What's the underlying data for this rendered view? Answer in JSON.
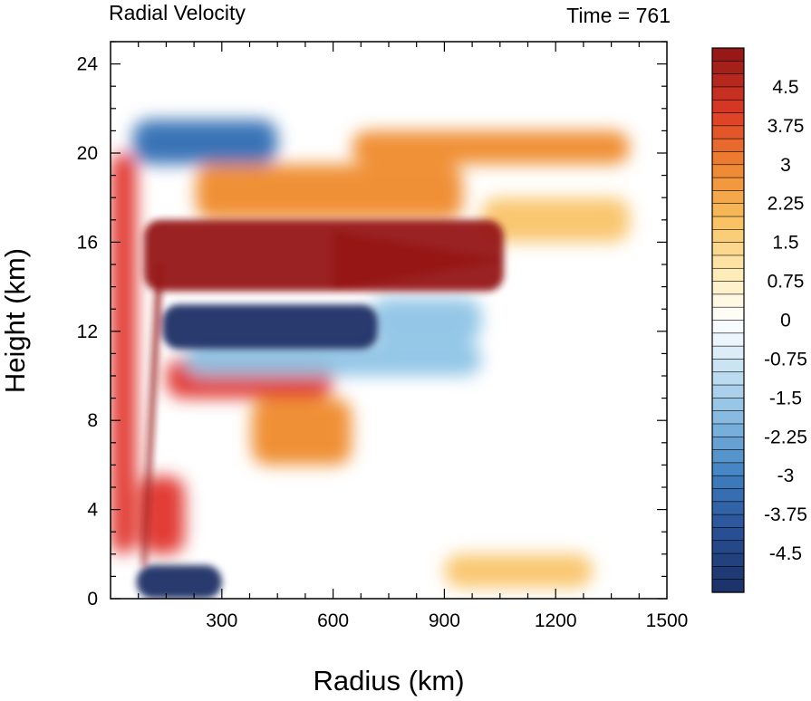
{
  "chart_data": {
    "type": "heatmap",
    "title": "Radial Velocity",
    "title_right": "Time = 761",
    "xlabel": "Radius (km)",
    "ylabel": "Height (km)",
    "xlim": [
      0,
      1500
    ],
    "ylim": [
      0,
      25
    ],
    "xticks": [
      300,
      600,
      900,
      1200,
      1500
    ],
    "yticks": [
      0,
      4,
      8,
      12,
      16,
      20,
      24
    ],
    "colorbar": {
      "range": [
        -5.25,
        5.25
      ],
      "step": 0.25,
      "tick_labels": [
        "4.5",
        "3.75",
        "3",
        "2.25",
        "1.5",
        "0.75",
        "0",
        "-0.75",
        "-1.5",
        "-2.25",
        "-3",
        "-3.75",
        "-4.5"
      ],
      "colors": {
        "neg_strong": "#1a2f66",
        "neg_mid": "#2f6db3",
        "neg_light": "#8ec4e6",
        "neg_pale": "#e6f3fb",
        "neutral": "#ffffff",
        "pos_pale": "#fff3d0",
        "pos_light": "#f9c46a",
        "pos_mid": "#ef8a2c",
        "pos_strong": "#e0312a",
        "pos_max": "#961616"
      }
    },
    "features": [
      {
        "r": [
          90,
          1060
        ],
        "z": [
          13.8,
          17.0
        ],
        "value": 5.5
      },
      {
        "r": [
          140,
          720
        ],
        "z": [
          11.2,
          13.2
        ],
        "value": -5.0
      },
      {
        "r": [
          700,
          1000
        ],
        "z": [
          11.5,
          13.5
        ],
        "value": -2.0
      },
      {
        "r": [
          230,
          950
        ],
        "z": [
          17.0,
          19.5
        ],
        "value": 3.0
      },
      {
        "r": [
          650,
          1400
        ],
        "z": [
          19.5,
          21.0
        ],
        "value": 3.0
      },
      {
        "r": [
          60,
          450
        ],
        "z": [
          19.5,
          21.5
        ],
        "value": -3.0
      },
      {
        "r": [
          150,
          600
        ],
        "z": [
          9.0,
          10.8
        ],
        "value": 3.5
      },
      {
        "r": [
          380,
          650
        ],
        "z": [
          6.0,
          9.0
        ],
        "value": 2.5
      },
      {
        "r": [
          200,
          1000
        ],
        "z": [
          10.0,
          11.5
        ],
        "value": -1.2
      },
      {
        "r": [
          1000,
          1400
        ],
        "z": [
          16.0,
          18.0
        ],
        "value": 1.5
      },
      {
        "r": [
          70,
          300
        ],
        "z": [
          0,
          1.5
        ],
        "value": -5.0
      },
      {
        "r": [
          80,
          200
        ],
        "z": [
          2.0,
          5.5
        ],
        "value": 4.0
      },
      {
        "r": [
          0,
          70
        ],
        "z": [
          2.0,
          20.0
        ],
        "value": 3.5
      },
      {
        "r": [
          900,
          1300
        ],
        "z": [
          0.5,
          2.0
        ],
        "value": 1.5
      }
    ]
  }
}
